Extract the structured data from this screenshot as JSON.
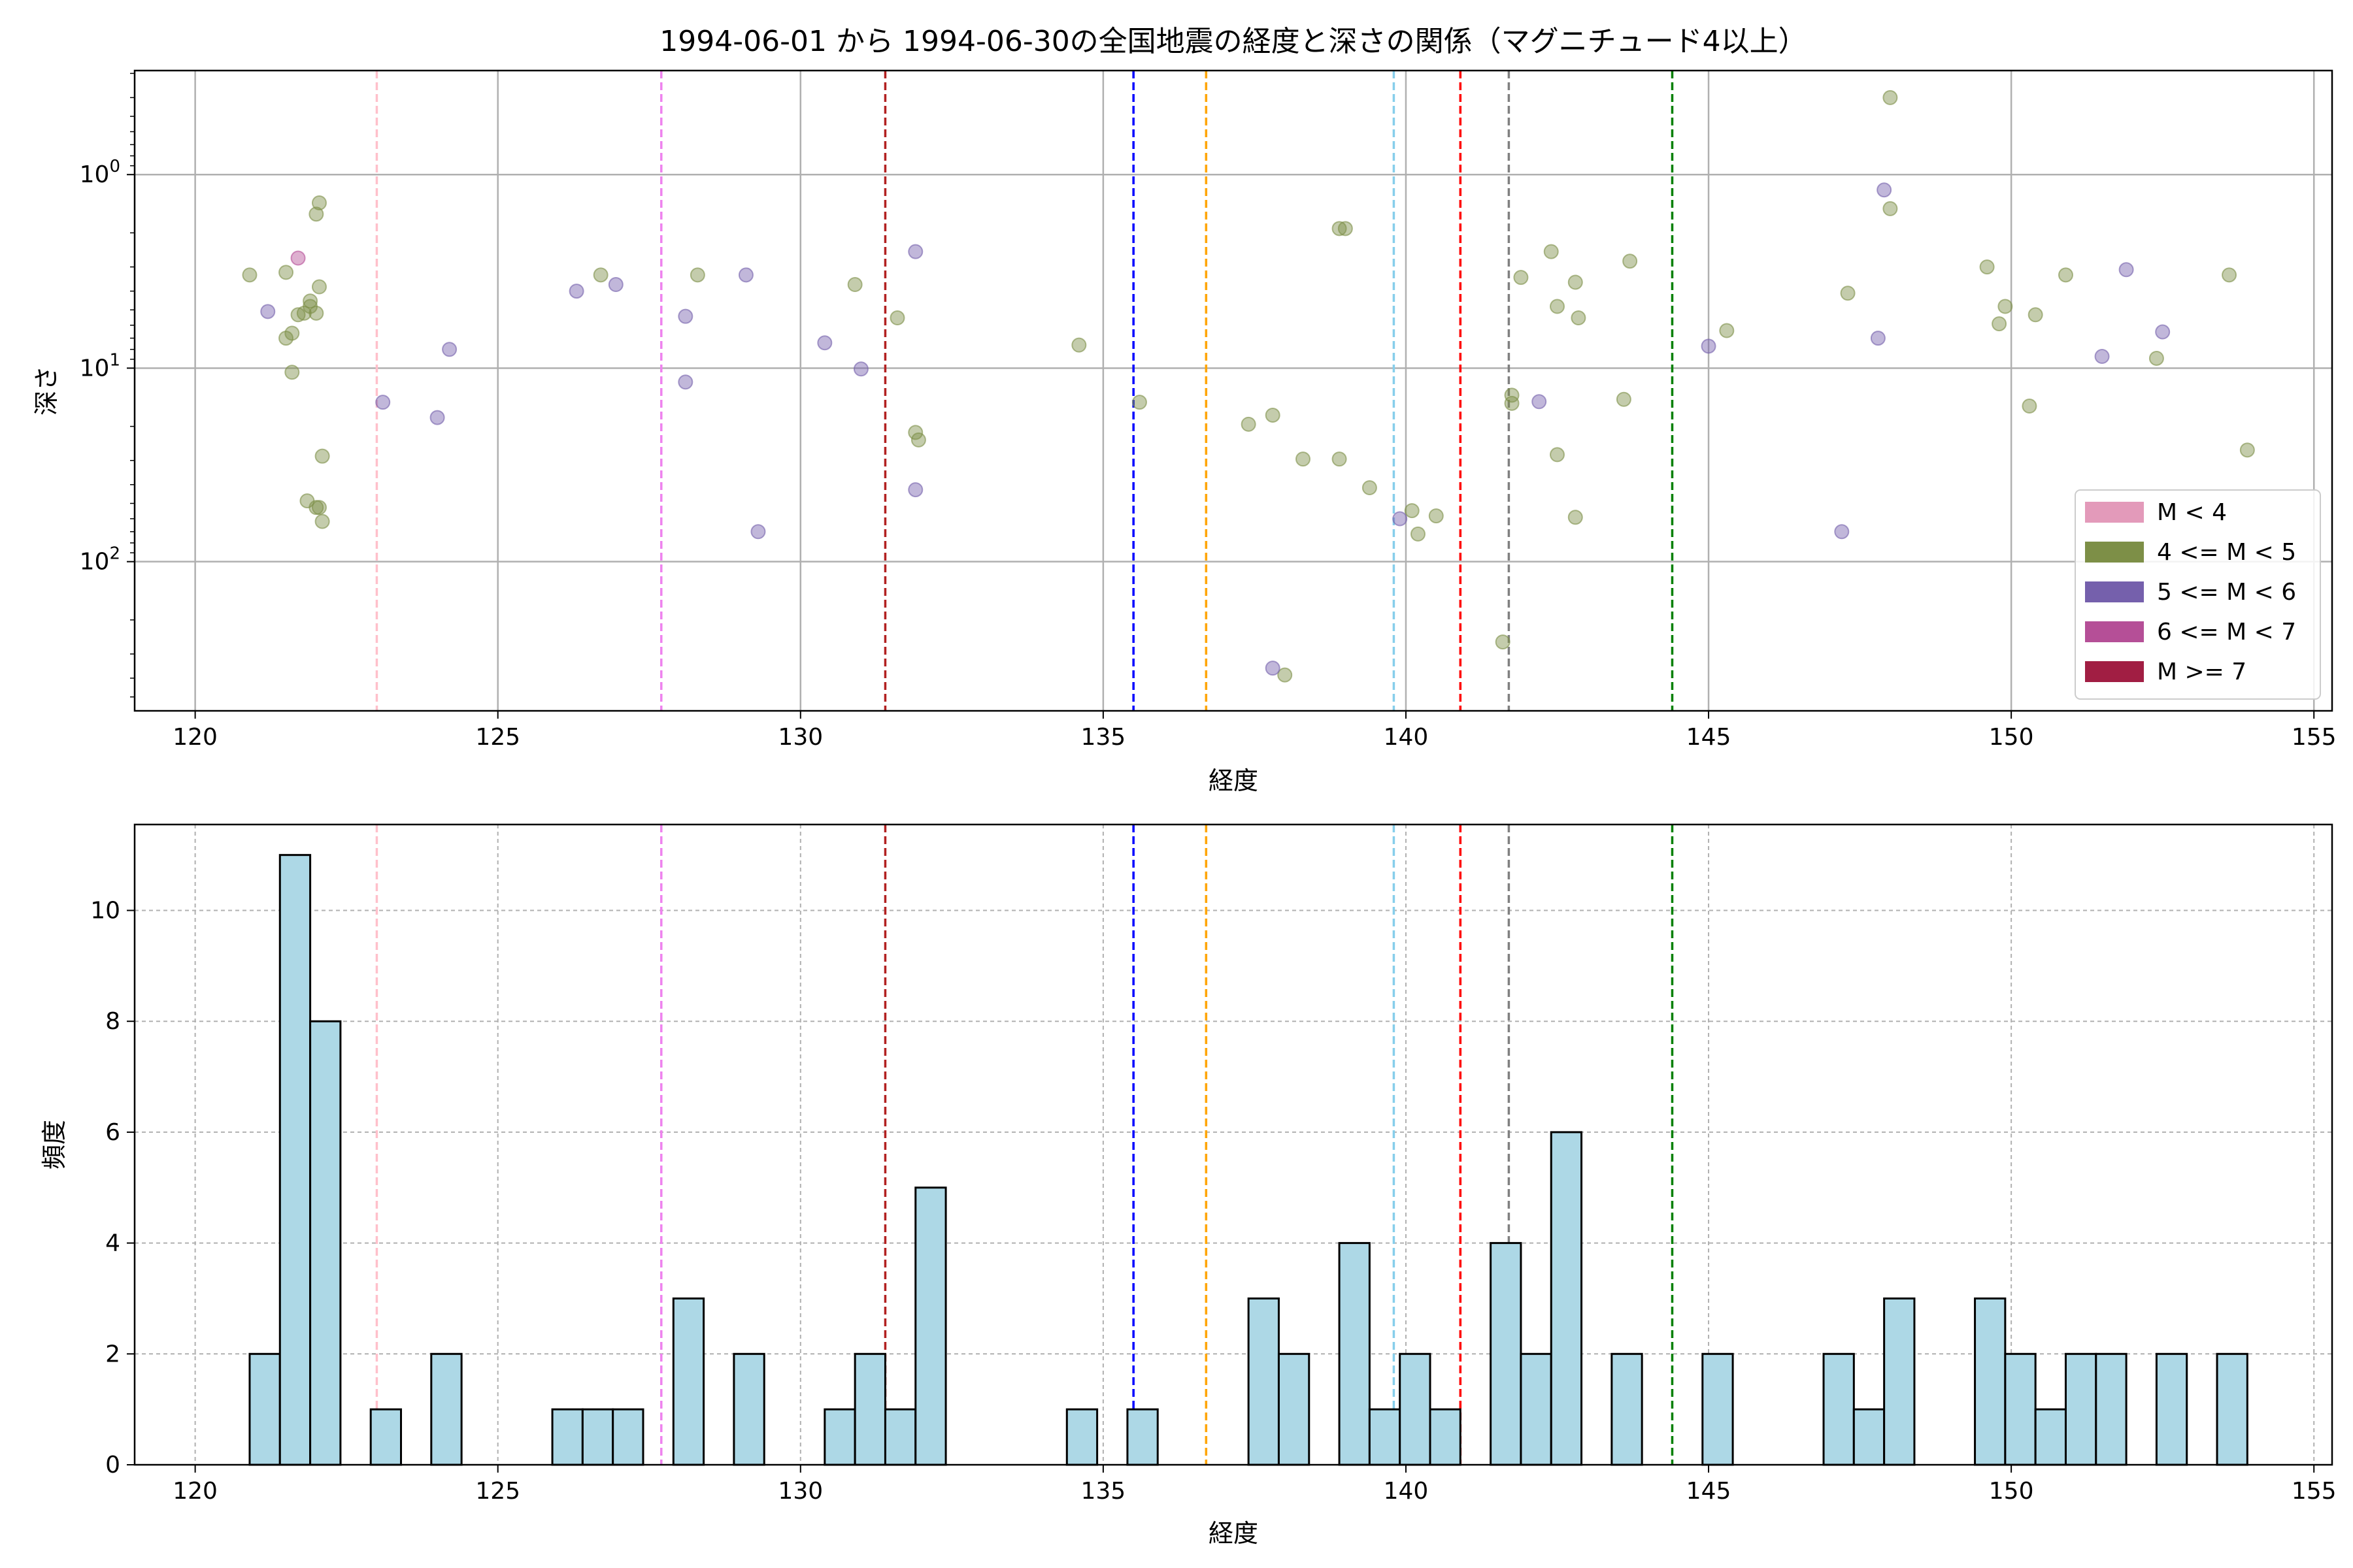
{
  "chart_data": [
    {
      "type": "scatter",
      "title": "1994-06-01 から 1994-06-30の全国地震の経度と深さの関係（マグニチュード4以上）",
      "xlabel": "経度",
      "ylabel": "深さ",
      "xlim": [
        119,
        155.3
      ],
      "ylim": [
        590,
        0.29
      ],
      "yscale": "log",
      "y_inverted": true,
      "grid": true,
      "x_ticks": [
        120,
        125,
        130,
        135,
        140,
        145,
        150,
        155
      ],
      "y_ticks": [
        {
          "value": 1,
          "label": "10",
          "exp": "0"
        },
        {
          "value": 10,
          "label": "10",
          "exp": "1"
        },
        {
          "value": 100,
          "label": "10",
          "exp": "2"
        }
      ],
      "legend": {
        "placement": "lower-right",
        "entries": [
          {
            "label": "M < 4",
            "color": "#e39aba"
          },
          {
            "label": "4 <= M < 5",
            "color": "#7d8f47"
          },
          {
            "label": "5 <= M < 6",
            "color": "#7560ac"
          },
          {
            "label": "6 <= M < 7",
            "color": "#b54f97"
          },
          {
            "label": "M >= 7",
            "color": "#a11e43"
          }
        ]
      },
      "vlines": [
        {
          "x": 123.0,
          "color": "#ffc0cb"
        },
        {
          "x": 127.7,
          "color": "#ee82ee"
        },
        {
          "x": 131.4,
          "color": "#b22222"
        },
        {
          "x": 135.5,
          "color": "#0000ff"
        },
        {
          "x": 136.7,
          "color": "#ffa500"
        },
        {
          "x": 139.8,
          "color": "#87ceeb"
        },
        {
          "x": 140.9,
          "color": "#ff0000"
        },
        {
          "x": 141.7,
          "color": "#808080"
        },
        {
          "x": 144.4,
          "color": "#008000"
        }
      ],
      "series": [
        {
          "name": "4 <= M < 5",
          "color": "#7d8f47",
          "points": [
            {
              "x": 120.9,
              "y": 3.3
            },
            {
              "x": 121.5,
              "y": 3.2
            },
            {
              "x": 121.6,
              "y": 6.6
            },
            {
              "x": 121.7,
              "y": 5.3
            },
            {
              "x": 121.8,
              "y": 5.2
            },
            {
              "x": 121.9,
              "y": 4.5
            },
            {
              "x": 121.9,
              "y": 4.8
            },
            {
              "x": 122.0,
              "y": 5.2
            },
            {
              "x": 122.0,
              "y": 1.6
            },
            {
              "x": 122.05,
              "y": 1.4
            },
            {
              "x": 122.05,
              "y": 3.8
            },
            {
              "x": 121.6,
              "y": 10.5
            },
            {
              "x": 121.5,
              "y": 7.0
            },
            {
              "x": 122.1,
              "y": 28.5
            },
            {
              "x": 121.85,
              "y": 48.5
            },
            {
              "x": 122.0,
              "y": 52.5
            },
            {
              "x": 122.05,
              "y": 52.5
            },
            {
              "x": 122.1,
              "y": 62.0
            },
            {
              "x": 126.7,
              "y": 3.3
            },
            {
              "x": 128.3,
              "y": 3.3
            },
            {
              "x": 130.9,
              "y": 3.7
            },
            {
              "x": 131.6,
              "y": 5.5
            },
            {
              "x": 131.9,
              "y": 21.5
            },
            {
              "x": 131.95,
              "y": 23.5
            },
            {
              "x": 134.6,
              "y": 7.6
            },
            {
              "x": 135.6,
              "y": 15.0
            },
            {
              "x": 137.4,
              "y": 19.5
            },
            {
              "x": 137.8,
              "y": 17.5
            },
            {
              "x": 138.3,
              "y": 29.5
            },
            {
              "x": 138.9,
              "y": 1.9
            },
            {
              "x": 139.0,
              "y": 1.9
            },
            {
              "x": 138.9,
              "y": 29.5
            },
            {
              "x": 139.4,
              "y": 41.5
            },
            {
              "x": 140.1,
              "y": 54.5
            },
            {
              "x": 140.5,
              "y": 58.0
            },
            {
              "x": 140.2,
              "y": 72.0
            },
            {
              "x": 138.0,
              "y": 385.0
            },
            {
              "x": 141.6,
              "y": 260.0
            },
            {
              "x": 141.75,
              "y": 13.8
            },
            {
              "x": 141.75,
              "y": 15.2
            },
            {
              "x": 141.9,
              "y": 3.4
            },
            {
              "x": 142.4,
              "y": 2.5
            },
            {
              "x": 142.5,
              "y": 4.8
            },
            {
              "x": 142.8,
              "y": 3.6
            },
            {
              "x": 142.85,
              "y": 5.5
            },
            {
              "x": 142.5,
              "y": 28.0
            },
            {
              "x": 142.8,
              "y": 59.0
            },
            {
              "x": 143.6,
              "y": 14.5
            },
            {
              "x": 143.7,
              "y": 2.8
            },
            {
              "x": 145.3,
              "y": 6.4
            },
            {
              "x": 147.3,
              "y": 4.1
            },
            {
              "x": 148.0,
              "y": 0.4
            },
            {
              "x": 148.0,
              "y": 1.5
            },
            {
              "x": 149.6,
              "y": 3.0
            },
            {
              "x": 149.8,
              "y": 5.9
            },
            {
              "x": 149.9,
              "y": 4.8
            },
            {
              "x": 150.4,
              "y": 5.3
            },
            {
              "x": 150.3,
              "y": 15.7
            },
            {
              "x": 150.9,
              "y": 3.3
            },
            {
              "x": 152.4,
              "y": 8.9
            },
            {
              "x": 153.6,
              "y": 3.3
            },
            {
              "x": 153.9,
              "y": 26.5
            }
          ]
        },
        {
          "name": "5 <= M < 6",
          "color": "#7560ac",
          "points": [
            {
              "x": 121.2,
              "y": 5.1
            },
            {
              "x": 123.1,
              "y": 15.0
            },
            {
              "x": 124.0,
              "y": 18.0
            },
            {
              "x": 124.2,
              "y": 8.0
            },
            {
              "x": 126.3,
              "y": 4.0
            },
            {
              "x": 126.95,
              "y": 3.7
            },
            {
              "x": 128.1,
              "y": 5.4
            },
            {
              "x": 128.1,
              "y": 11.8
            },
            {
              "x": 129.1,
              "y": 3.3
            },
            {
              "x": 129.3,
              "y": 70.0
            },
            {
              "x": 130.4,
              "y": 7.4
            },
            {
              "x": 131.0,
              "y": 10.1
            },
            {
              "x": 131.9,
              "y": 2.5
            },
            {
              "x": 131.9,
              "y": 42.5
            },
            {
              "x": 139.9,
              "y": 60.0
            },
            {
              "x": 142.2,
              "y": 14.9
            },
            {
              "x": 145.0,
              "y": 7.7
            },
            {
              "x": 147.9,
              "y": 1.2
            },
            {
              "x": 147.8,
              "y": 7.0
            },
            {
              "x": 147.2,
              "y": 70.0
            },
            {
              "x": 151.5,
              "y": 8.7
            },
            {
              "x": 151.9,
              "y": 3.1
            },
            {
              "x": 152.5,
              "y": 6.5
            },
            {
              "x": 137.8,
              "y": 355.0
            }
          ]
        },
        {
          "name": "6 <= M < 7",
          "color": "#b54f97",
          "points": [
            {
              "x": 121.7,
              "y": 2.7
            }
          ]
        }
      ]
    },
    {
      "type": "bar",
      "title": "",
      "xlabel": "経度",
      "ylabel": "頻度",
      "xlim": [
        119,
        155.3
      ],
      "ylim": [
        0,
        11.55
      ],
      "grid": true,
      "x_ticks": [
        120,
        125,
        130,
        135,
        140,
        145,
        150,
        155
      ],
      "y_ticks": [
        0,
        2,
        4,
        6,
        8,
        10
      ],
      "bar_color": "#add8e6",
      "edge_color": "#000000",
      "bin_width": 0.5,
      "bins": [
        {
          "x0": 120.9,
          "value": 2
        },
        {
          "x0": 121.4,
          "value": 11
        },
        {
          "x0": 121.9,
          "value": 8
        },
        {
          "x0": 122.9,
          "value": 1
        },
        {
          "x0": 123.9,
          "value": 2
        },
        {
          "x0": 125.9,
          "value": 1
        },
        {
          "x0": 126.4,
          "value": 1
        },
        {
          "x0": 126.9,
          "value": 1
        },
        {
          "x0": 127.9,
          "value": 3
        },
        {
          "x0": 128.9,
          "value": 2
        },
        {
          "x0": 130.4,
          "value": 1
        },
        {
          "x0": 130.9,
          "value": 2
        },
        {
          "x0": 131.4,
          "value": 1
        },
        {
          "x0": 131.9,
          "value": 5
        },
        {
          "x0": 134.4,
          "value": 1
        },
        {
          "x0": 135.4,
          "value": 1
        },
        {
          "x0": 137.4,
          "value": 3
        },
        {
          "x0": 137.9,
          "value": 2
        },
        {
          "x0": 138.9,
          "value": 4
        },
        {
          "x0": 139.4,
          "value": 1
        },
        {
          "x0": 139.9,
          "value": 2
        },
        {
          "x0": 140.4,
          "value": 1
        },
        {
          "x0": 141.4,
          "value": 4
        },
        {
          "x0": 141.9,
          "value": 2
        },
        {
          "x0": 142.4,
          "value": 6
        },
        {
          "x0": 143.4,
          "value": 2
        },
        {
          "x0": 144.9,
          "value": 2
        },
        {
          "x0": 146.9,
          "value": 2
        },
        {
          "x0": 147.4,
          "value": 1
        },
        {
          "x0": 147.9,
          "value": 3
        },
        {
          "x0": 149.4,
          "value": 3
        },
        {
          "x0": 149.9,
          "value": 2
        },
        {
          "x0": 150.4,
          "value": 1
        },
        {
          "x0": 150.9,
          "value": 2
        },
        {
          "x0": 151.4,
          "value": 2
        },
        {
          "x0": 152.4,
          "value": 2
        },
        {
          "x0": 153.4,
          "value": 2
        }
      ],
      "vlines": [
        {
          "x": 123.0,
          "color": "#ffc0cb"
        },
        {
          "x": 127.7,
          "color": "#ee82ee"
        },
        {
          "x": 131.4,
          "color": "#b22222"
        },
        {
          "x": 135.5,
          "color": "#0000ff"
        },
        {
          "x": 136.7,
          "color": "#ffa500"
        },
        {
          "x": 139.8,
          "color": "#87ceeb"
        },
        {
          "x": 140.9,
          "color": "#ff0000"
        },
        {
          "x": 141.7,
          "color": "#808080"
        },
        {
          "x": 144.4,
          "color": "#008000"
        }
      ]
    }
  ]
}
